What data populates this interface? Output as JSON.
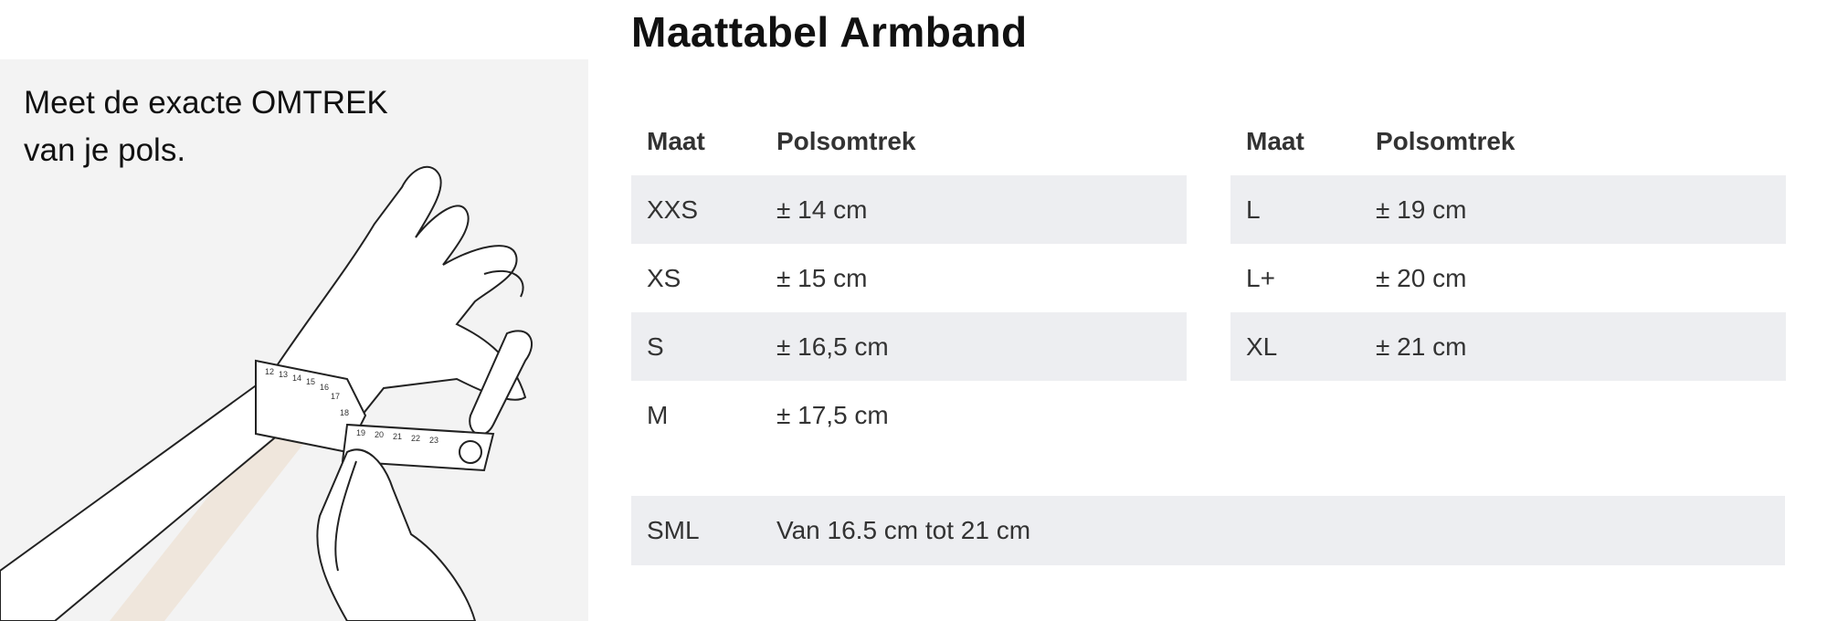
{
  "title": "Maattabel Armband",
  "instruction": {
    "line1": "Meet de exacte OMTREK",
    "line2": "van je pols."
  },
  "table_headers": {
    "size": "Maat",
    "circumference": "Polsomtrek"
  },
  "left_table": [
    {
      "size": "XXS",
      "value": "± 14 cm"
    },
    {
      "size": "XS",
      "value": "± 15 cm"
    },
    {
      "size": "S",
      "value": "± 16,5 cm"
    },
    {
      "size": "M",
      "value": "± 17,5 cm"
    }
  ],
  "right_table": [
    {
      "size": "L",
      "value": "± 19 cm"
    },
    {
      "size": "L+",
      "value": "± 20 cm"
    },
    {
      "size": "XL",
      "value": "± 21 cm"
    }
  ],
  "sml_row": {
    "size": "SML",
    "value": "Van 16.5 cm tot 21 cm"
  },
  "tape_numbers": [
    "12",
    "13",
    "14",
    "15",
    "16",
    "17",
    "18",
    "19",
    "20",
    "21",
    "22",
    "23"
  ],
  "colors": {
    "row_shade": "#edeef1",
    "panel": "#f3f3f3",
    "text": "#333333"
  }
}
